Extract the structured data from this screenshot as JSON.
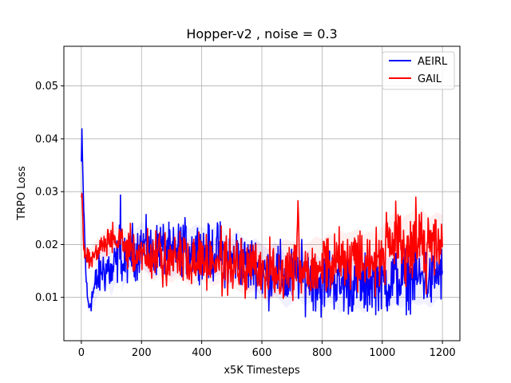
{
  "chart_data": {
    "type": "line",
    "title": "Hopper-v2 , noise = 0.3",
    "xlabel": "x5K Timesteps",
    "ylabel": "TRPO Loss",
    "xlim": [
      -58,
      1258
    ],
    "ylim": [
      0.0018,
      0.0575
    ],
    "xticks": [
      0,
      200,
      400,
      600,
      800,
      1000,
      1200
    ],
    "xtick_labels": [
      "0",
      "200",
      "400",
      "600",
      "800",
      "1000",
      "1200"
    ],
    "yticks": [
      0.01,
      0.02,
      0.03,
      0.04,
      0.05
    ],
    "ytick_labels": [
      "0.01",
      "0.02",
      "0.03",
      "0.04",
      "0.05"
    ],
    "grid": true,
    "legend_position": "top-right",
    "series": [
      {
        "name": "AEIRL",
        "color": "#0000ff",
        "x": [
          0,
          2,
          5,
          8,
          12,
          15,
          20,
          25,
          30,
          40,
          50,
          60,
          70,
          80,
          90,
          100,
          110,
          120,
          128,
          130,
          132,
          135,
          140,
          150,
          160,
          170,
          180,
          190,
          200,
          220,
          240,
          260,
          280,
          300,
          320,
          340,
          360,
          380,
          400,
          420,
          440,
          460,
          480,
          500,
          520,
          540,
          560,
          580,
          600,
          620,
          640,
          660,
          680,
          700,
          720,
          740,
          760,
          780,
          800,
          820,
          840,
          860,
          880,
          900,
          920,
          940,
          960,
          980,
          1000,
          1020,
          1040,
          1060,
          1080,
          1100,
          1120,
          1140,
          1160,
          1180,
          1200
        ],
        "values": [
          0.0355,
          0.0402,
          0.033,
          0.027,
          0.02,
          0.015,
          0.01,
          0.0082,
          0.009,
          0.011,
          0.013,
          0.014,
          0.0155,
          0.015,
          0.016,
          0.014,
          0.016,
          0.017,
          0.021,
          0.0298,
          0.017,
          0.015,
          0.016,
          0.017,
          0.018,
          0.019,
          0.0185,
          0.019,
          0.02,
          0.019,
          0.018,
          0.02,
          0.019,
          0.018,
          0.019,
          0.02,
          0.0185,
          0.0195,
          0.019,
          0.018,
          0.0185,
          0.019,
          0.0175,
          0.017,
          0.018,
          0.0165,
          0.016,
          0.0165,
          0.015,
          0.014,
          0.0155,
          0.0145,
          0.013,
          0.014,
          0.015,
          0.0135,
          0.014,
          0.013,
          0.012,
          0.014,
          0.0135,
          0.012,
          0.013,
          0.0125,
          0.013,
          0.012,
          0.013,
          0.0135,
          0.013,
          0.0125,
          0.014,
          0.013,
          0.0135,
          0.014,
          0.0135,
          0.014,
          0.013,
          0.0145,
          0.015
        ],
        "amplitude": [
          0.001,
          0.001,
          0.001,
          0.001,
          0.0008,
          0.0008,
          0.0008,
          0.0006,
          0.001,
          0.0015,
          0.0018,
          0.002,
          0.002,
          0.0022,
          0.0022,
          0.0022,
          0.0022,
          0.0022,
          0.0018,
          0.0005,
          0.002,
          0.0022,
          0.0022,
          0.0022,
          0.0022,
          0.0024,
          0.0024,
          0.0024,
          0.0024,
          0.0024,
          0.0024,
          0.0024,
          0.0024,
          0.0024,
          0.0024,
          0.0024,
          0.0024,
          0.0024,
          0.0024,
          0.0026,
          0.0026,
          0.0026,
          0.0026,
          0.0026,
          0.0026,
          0.0026,
          0.0026,
          0.0026,
          0.0028,
          0.0028,
          0.0028,
          0.0028,
          0.0028,
          0.0028,
          0.0028,
          0.0028,
          0.0028,
          0.0028,
          0.0028,
          0.0028,
          0.0028,
          0.0028,
          0.0028,
          0.0028,
          0.0028,
          0.0028,
          0.0028,
          0.0028,
          0.0028,
          0.0028,
          0.0028,
          0.0028,
          0.0028,
          0.0028,
          0.0028,
          0.0028,
          0.0028,
          0.0028,
          0.0028
        ]
      },
      {
        "name": "GAIL",
        "color": "#ff0000",
        "x": [
          0,
          2,
          5,
          8,
          12,
          15,
          20,
          30,
          40,
          60,
          80,
          100,
          110,
          120,
          140,
          160,
          180,
          200,
          220,
          240,
          260,
          280,
          300,
          320,
          340,
          360,
          380,
          400,
          420,
          440,
          460,
          480,
          500,
          520,
          540,
          560,
          580,
          600,
          620,
          640,
          660,
          680,
          700,
          715,
          720,
          725,
          740,
          760,
          780,
          800,
          820,
          840,
          860,
          880,
          900,
          920,
          940,
          960,
          980,
          1000,
          1020,
          1040,
          1060,
          1080,
          1100,
          1110,
          1120,
          1130,
          1140,
          1160,
          1180,
          1200
        ],
        "values": [
          0.028,
          0.0295,
          0.026,
          0.02,
          0.018,
          0.0175,
          0.018,
          0.0175,
          0.018,
          0.019,
          0.02,
          0.021,
          0.0215,
          0.0205,
          0.02,
          0.019,
          0.018,
          0.019,
          0.018,
          0.017,
          0.018,
          0.0175,
          0.017,
          0.018,
          0.0175,
          0.0165,
          0.017,
          0.0175,
          0.017,
          0.0165,
          0.017,
          0.016,
          0.0165,
          0.016,
          0.015,
          0.0155,
          0.016,
          0.015,
          0.0145,
          0.015,
          0.0155,
          0.016,
          0.0155,
          0.0165,
          0.0288,
          0.016,
          0.015,
          0.0155,
          0.0165,
          0.016,
          0.017,
          0.0165,
          0.0175,
          0.017,
          0.0175,
          0.018,
          0.017,
          0.0175,
          0.017,
          0.018,
          0.019,
          0.02,
          0.0185,
          0.0195,
          0.02,
          0.022,
          0.0195,
          0.021,
          0.02,
          0.019,
          0.02,
          0.0195
        ],
        "amplitude": [
          0.0005,
          0.0005,
          0.001,
          0.001,
          0.001,
          0.001,
          0.001,
          0.001,
          0.0012,
          0.0014,
          0.0014,
          0.0014,
          0.0012,
          0.0014,
          0.0016,
          0.0018,
          0.0018,
          0.002,
          0.002,
          0.0022,
          0.0022,
          0.0024,
          0.0024,
          0.0024,
          0.0024,
          0.0024,
          0.0024,
          0.0024,
          0.0024,
          0.0024,
          0.0024,
          0.0024,
          0.0026,
          0.0026,
          0.0026,
          0.0026,
          0.0026,
          0.0028,
          0.0028,
          0.0028,
          0.0028,
          0.0028,
          0.0028,
          0.0024,
          0.0005,
          0.0024,
          0.0028,
          0.0028,
          0.0028,
          0.0028,
          0.0028,
          0.0028,
          0.0028,
          0.0028,
          0.0028,
          0.0028,
          0.0028,
          0.0028,
          0.0028,
          0.003,
          0.0032,
          0.0034,
          0.0034,
          0.0034,
          0.0034,
          0.0034,
          0.0034,
          0.0034,
          0.0034,
          0.0034,
          0.0034,
          0.0034
        ]
      }
    ]
  }
}
